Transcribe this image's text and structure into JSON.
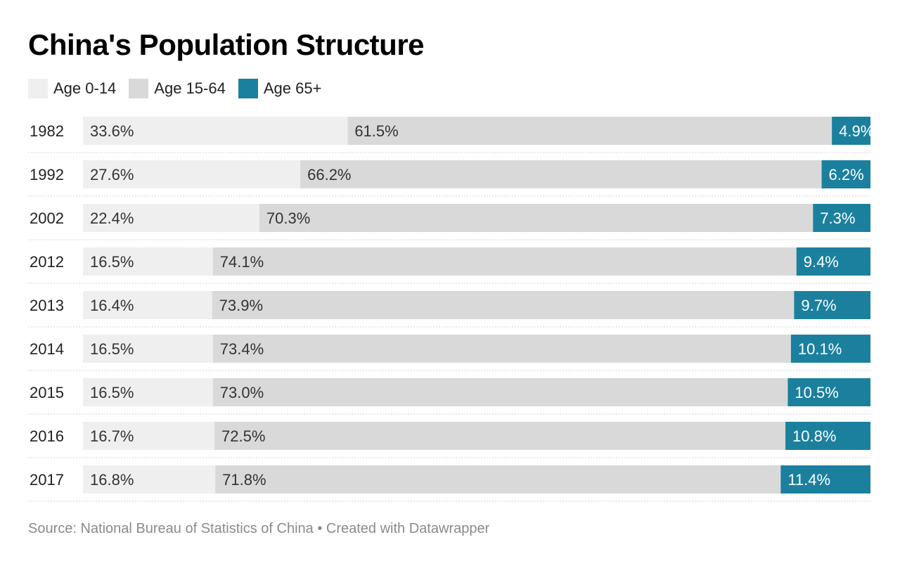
{
  "chart_data": {
    "type": "bar",
    "stacked": true,
    "orientation": "horizontal",
    "title": "China's Population Structure",
    "categories": [
      "1982",
      "1992",
      "2002",
      "2012",
      "2013",
      "2014",
      "2015",
      "2016",
      "2017"
    ],
    "series": [
      {
        "name": "Age 0-14",
        "color": "#efefef",
        "text_color": "#333333",
        "values": [
          33.6,
          27.6,
          22.4,
          16.5,
          16.4,
          16.5,
          16.5,
          16.7,
          16.8
        ]
      },
      {
        "name": "Age 15-64",
        "color": "#d9d9d9",
        "text_color": "#333333",
        "values": [
          61.5,
          66.2,
          70.3,
          74.1,
          73.9,
          73.4,
          73.0,
          72.5,
          71.8
        ]
      },
      {
        "name": "Age 65+",
        "color": "#1b809e",
        "text_color": "#ffffff",
        "values": [
          4.9,
          6.2,
          7.3,
          9.4,
          9.7,
          10.1,
          10.5,
          10.8,
          11.4
        ]
      }
    ],
    "value_suffix": "%",
    "legend_position": "top-left",
    "grid": false
  },
  "footer": {
    "source": "Source: National Bureau of Statistics of China • Created with Datawrapper"
  }
}
